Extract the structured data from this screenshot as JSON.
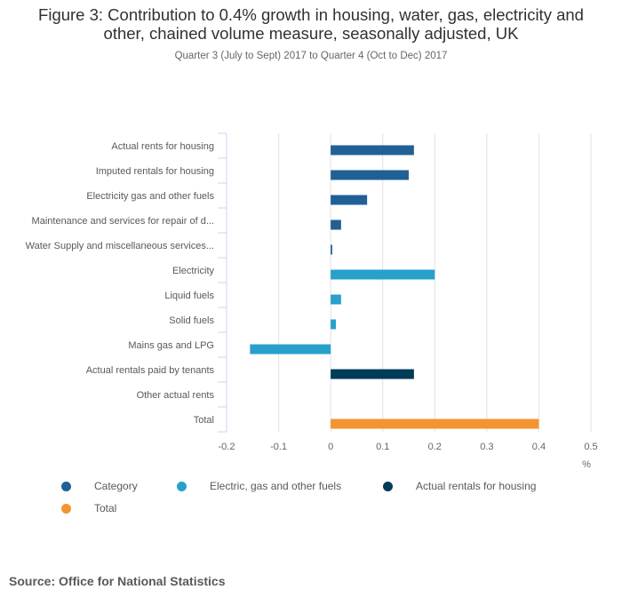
{
  "header": {
    "title_line1": "Figure 3: Contribution to 0.4% growth in housing, water, gas, electricity and",
    "title_line2": "other, chained volume measure, seasonally adjusted, UK",
    "subtitle": "Quarter 3 (July to Sept) 2017 to Quarter 4 (Oct to Dec) 2017"
  },
  "source": "Source: Office for National Statistics",
  "chart_data": {
    "type": "bar",
    "orientation": "horizontal",
    "title": "Figure 3: Contribution to 0.4% growth in housing, water, gas, electricity and other, chained volume measure, seasonally adjusted, UK",
    "subtitle": "Quarter 3 (July to Sept) 2017 to Quarter 4 (Oct to Dec) 2017",
    "xlabel": "%",
    "ylabel": "",
    "xlim": [
      -0.2,
      0.5
    ],
    "xticks": [
      "-0.2",
      "-0.1",
      "0",
      "0.1",
      "0.2",
      "0.3",
      "0.4",
      "0.5"
    ],
    "grid": true,
    "legend_position": "bottom",
    "categories": [
      "Actual rents for housing",
      "Imputed rentals for housing",
      "Electricity gas and other fuels",
      "Maintenance and services for repair of d...",
      "Water Supply and miscellaneous services...",
      "Electricity",
      "Liquid fuels",
      "Solid fuels",
      "Mains gas and LPG",
      "Actual rentals paid by tenants",
      "Other actual rents",
      "Total"
    ],
    "values": [
      0.16,
      0.15,
      0.07,
      0.02,
      0.003,
      0.2,
      0.02,
      0.01,
      -0.155,
      0.16,
      0.0,
      0.4
    ],
    "series_of_bar": [
      "Category",
      "Category",
      "Category",
      "Category",
      "Category",
      "Electric, gas and other fuels",
      "Electric, gas and other fuels",
      "Electric, gas and other fuels",
      "Electric, gas and other fuels",
      "Actual rentals for housing",
      "Actual rentals for housing",
      "Total"
    ],
    "series": [
      {
        "name": "Category",
        "color": "#206095"
      },
      {
        "name": "Electric, gas and other fuels",
        "color": "#27a0cc"
      },
      {
        "name": "Actual rentals for housing",
        "color": "#003c57"
      },
      {
        "name": "Total",
        "color": "#f39431"
      }
    ]
  }
}
